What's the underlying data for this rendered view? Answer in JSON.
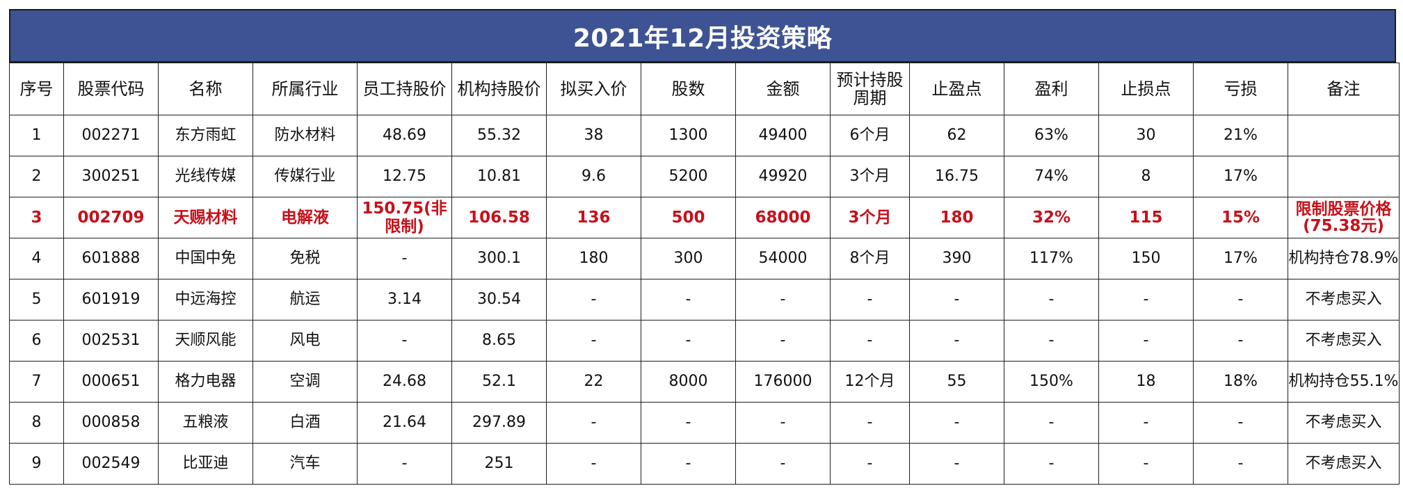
{
  "title": "2021年12月投资策略",
  "columns": [
    "序号",
    "股票代码",
    "名称",
    "所属行业",
    "员工持股价",
    "机构持股价",
    "拟买入价",
    "股数",
    "金额",
    "预计持股周期",
    "止盈点",
    "盈利",
    "止损点",
    "亏损",
    "备注"
  ],
  "rows": [
    [
      "1",
      "002271",
      "东方雨虹",
      "防水材料",
      "48.69",
      "55.32",
      "38",
      "1300",
      "49400",
      "6个月",
      "62",
      "63%",
      "30",
      "21%",
      ""
    ],
    [
      "2",
      "300251",
      "光线传媒",
      "传媒行业",
      "12.75",
      "10.81",
      "9.6",
      "5200",
      "49920",
      "3个月",
      "16.75",
      "74%",
      "8",
      "17%",
      ""
    ],
    [
      "3",
      "002709",
      "天赐材料",
      "电解液",
      "150.75(非限制)",
      "106.58",
      "136",
      "500",
      "68000",
      "3个月",
      "180",
      "32%",
      "115",
      "15%",
      "限制股票价格(75.38元)"
    ],
    [
      "4",
      "601888",
      "中国中免",
      "免税",
      "-",
      "300.1",
      "180",
      "300",
      "54000",
      "8个月",
      "390",
      "117%",
      "150",
      "17%",
      "机构持仓78.9%"
    ],
    [
      "5",
      "601919",
      "中远海控",
      "航运",
      "3.14",
      "30.54",
      "-",
      "-",
      "-",
      "-",
      "-",
      "-",
      "-",
      "-",
      "不考虑买入"
    ],
    [
      "6",
      "002531",
      "天顺风能",
      "风电",
      "-",
      "8.65",
      "-",
      "-",
      "-",
      "-",
      "-",
      "-",
      "-",
      "-",
      "不考虑买入"
    ],
    [
      "7",
      "000651",
      "格力电器",
      "空调",
      "24.68",
      "52.1",
      "22",
      "8000",
      "176000",
      "12个月",
      "55",
      "150%",
      "18",
      "18%",
      "机构持仓55.1%"
    ],
    [
      "8",
      "000858",
      "五粮液",
      "白酒",
      "21.64",
      "297.89",
      "-",
      "-",
      "-",
      "-",
      "-",
      "-",
      "-",
      "-",
      "不考虑买入"
    ],
    [
      "9",
      "002549",
      "比亚迪",
      "汽车",
      "-",
      "251",
      "-",
      "-",
      "-",
      "-",
      "-",
      "-",
      "-",
      "-",
      "不考虑买入"
    ]
  ],
  "highlight_row_index": 2,
  "colors": {
    "header_bg": "#3e5393",
    "header_text": "#ffffff",
    "highlight_text": "#c8101a"
  }
}
